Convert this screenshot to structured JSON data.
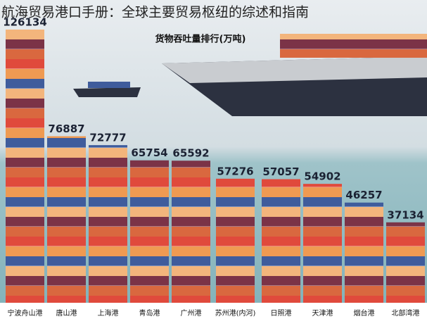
{
  "chart_data": {
    "type": "bar",
    "title": "航海贸易港口手册：全球主要贸易枢纽的综述和指南",
    "subtitle": "货物吞吐量排行(万吨)",
    "categories": [
      "宁波舟山港",
      "唐山港",
      "上海港",
      "青岛港",
      "广州港",
      "苏州港(内河)",
      "日照港",
      "天津港",
      "烟台港",
      "北部湾港"
    ],
    "values": [
      126134,
      76887,
      72777,
      65754,
      65592,
      57276,
      57057,
      54902,
      46257,
      37134
    ]
  }
}
